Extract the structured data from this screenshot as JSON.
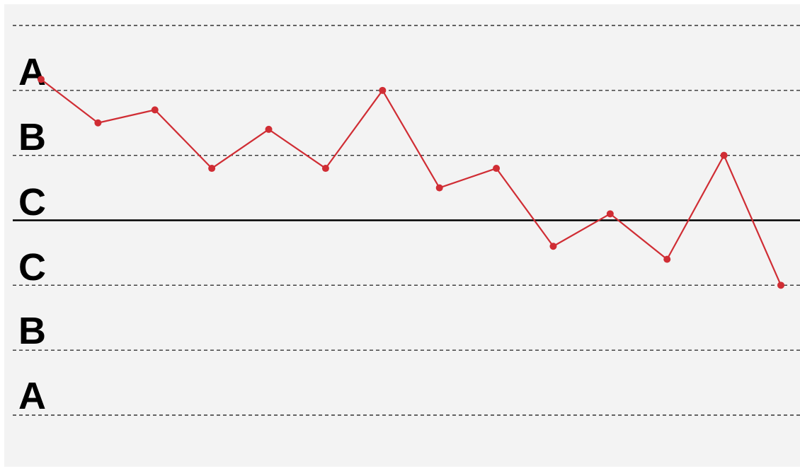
{
  "chart_data": {
    "type": "line",
    "title": "",
    "xlabel": "",
    "ylabel": "",
    "zone_labels_upper": [
      "A",
      "B",
      "C"
    ],
    "zone_labels_lower": [
      "C",
      "B",
      "A"
    ],
    "ylim": [
      -3,
      3
    ],
    "center_line": 0,
    "zone_limits": [
      -3,
      -2,
      -1,
      1,
      2,
      3
    ],
    "grid": false,
    "legend": "none",
    "x": [
      1,
      2,
      3,
      4,
      5,
      6,
      7,
      8,
      9,
      10,
      11,
      12,
      13,
      14
    ],
    "series": [
      {
        "values": [
          2.17,
          1.5,
          1.7,
          0.8,
          1.4,
          0.8,
          2.0,
          0.5,
          0.8,
          -0.4,
          0.1,
          -0.6,
          1.0,
          -1.0
        ]
      }
    ],
    "colors": {
      "series": "#d02d34",
      "center_line": "#000000",
      "zone_lines": "#333333",
      "background": "#f3f3f3"
    }
  }
}
